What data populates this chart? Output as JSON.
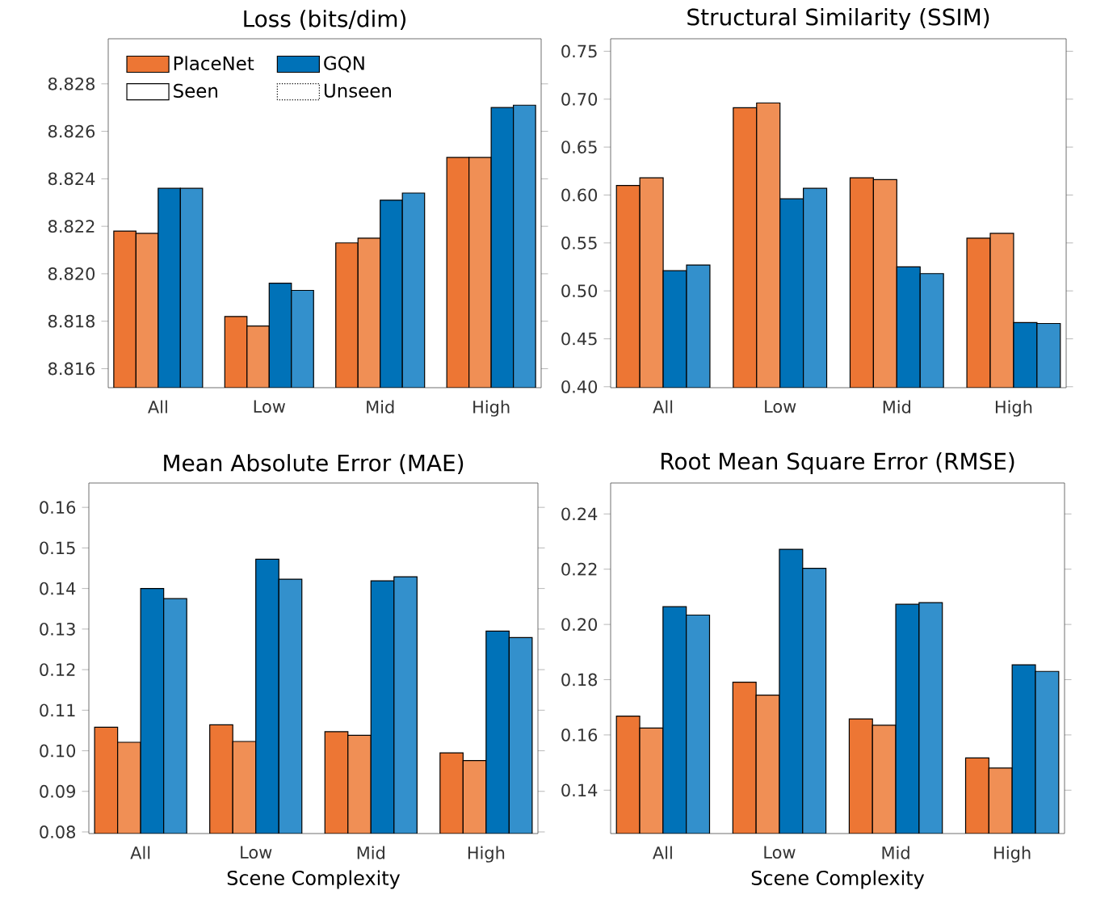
{
  "chart_data": [
    {
      "type": "bar",
      "title": "Loss (bits/dim)",
      "categories": [
        "All",
        "Low",
        "Mid",
        "High"
      ],
      "ylim": [
        8.8152,
        8.8299
      ],
      "yticks": [
        8.816,
        8.818,
        {
          "value": 8.82,
          "label": "8.820"
        },
        8.822,
        8.824,
        8.826,
        8.828
      ],
      "legend": "top left",
      "annotations": [
        "Seen",
        "Unseen"
      ],
      "series": [
        {
          "name": "PlaceNet",
          "color": "#ed7634",
          "values": [
            8.8218,
            8.8182,
            8.8213,
            8.8249
          ]
        },
        {
          "color": "#f08f55",
          "values": [
            8.8217,
            8.8178,
            8.8215,
            8.8249
          ]
        },
        {
          "name": "GQN",
          "color": "#0072b8",
          "values": [
            8.8236,
            8.8196,
            8.8231,
            8.827
          ]
        },
        {
          "color": "#3390cc",
          "values": [
            8.8236,
            8.8193,
            8.8234,
            8.8271
          ]
        }
      ]
    },
    {
      "type": "bar",
      "title": "Structural Similarity (SSIM)",
      "categories": [
        "All",
        "Low",
        "Mid",
        "High"
      ],
      "ylim": [
        0.399,
        0.763
      ],
      "yticks": [
        {
          "value": 0.4,
          "label": "0.40"
        },
        0.45,
        {
          "value": 0.5,
          "label": "0.50"
        },
        0.55,
        {
          "value": 0.6,
          "label": "0.60"
        },
        0.65,
        {
          "value": 0.7,
          "label": "0.70"
        },
        0.75
      ],
      "series": [
        {
          "color": "#ed7634",
          "values": [
            0.61,
            0.691,
            0.618,
            0.555
          ]
        },
        {
          "color": "#f08f55",
          "values": [
            0.618,
            0.696,
            0.616,
            0.56
          ]
        },
        {
          "color": "#0072b8",
          "values": [
            0.521,
            0.596,
            0.525,
            0.467
          ]
        },
        {
          "color": "#3390cc",
          "values": [
            0.527,
            0.607,
            0.518,
            0.466
          ]
        }
      ]
    },
    {
      "type": "bar",
      "title": "Mean Absolute Error (MAE)",
      "xlabel": "Scene Complexity",
      "categories": [
        "All",
        "Low",
        "Mid",
        "High"
      ],
      "ylim": [
        0.0796,
        0.166
      ],
      "yticks": [
        0.08,
        0.09,
        {
          "value": 0.1,
          "label": "0.10"
        },
        0.11,
        0.12,
        0.13,
        0.14,
        0.15,
        0.16
      ],
      "series": [
        {
          "color": "#ed7634",
          "values": [
            0.1058,
            0.1064,
            0.1047,
            0.0995
          ]
        },
        {
          "color": "#f08f55",
          "values": [
            0.1021,
            0.1023,
            0.1038,
            0.0976
          ]
        },
        {
          "color": "#0072b8",
          "values": [
            0.14,
            0.1472,
            0.1419,
            0.1295
          ]
        },
        {
          "color": "#3390cc",
          "values": [
            0.1375,
            0.1423,
            0.1429,
            0.1279
          ]
        }
      ]
    },
    {
      "type": "bar",
      "title": "Root Mean Square Error (RMSE)",
      "xlabel": "Scene Complexity",
      "categories": [
        "All",
        "Low",
        "Mid",
        "High"
      ],
      "ylim": [
        0.1243,
        0.2512
      ],
      "yticks": [
        0.14,
        0.16,
        0.18,
        {
          "value": 0.2,
          "label": "0.20"
        },
        0.22,
        0.24
      ],
      "series": [
        {
          "color": "#ed7634",
          "values": [
            0.1668,
            0.1791,
            0.1658,
            0.1517
          ]
        },
        {
          "color": "#f08f55",
          "values": [
            0.1625,
            0.1744,
            0.1635,
            0.148
          ]
        },
        {
          "color": "#0072b8",
          "values": [
            0.2064,
            0.2272,
            0.2073,
            0.1854
          ]
        },
        {
          "color": "#3390cc",
          "values": [
            0.2034,
            0.2203,
            0.2079,
            0.183
          ]
        }
      ]
    }
  ]
}
